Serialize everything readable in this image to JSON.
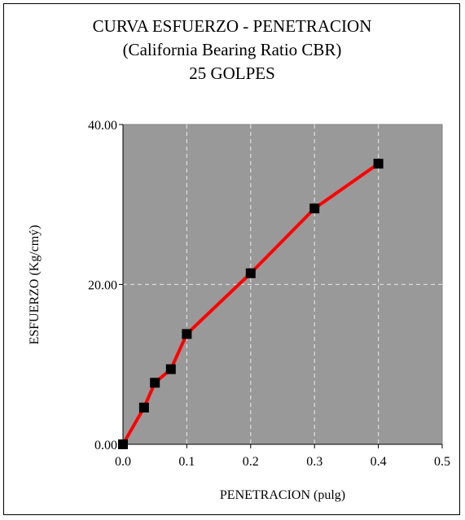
{
  "chart_data": {
    "type": "line",
    "title": "CURVA ESFUERZO - PENETRACION",
    "subtitle": "(California Bearing Ratio CBR)",
    "subtitle2": "25 GOLPES",
    "xlabel": "PENETRACION (pulg)",
    "ylabel": "ESFUERZO (Kg/cmý)",
    "xlim": [
      0,
      0.5
    ],
    "ylim": [
      0,
      40
    ],
    "x_ticks": [
      "0.0",
      "0.1",
      "0.2",
      "0.3",
      "0.4",
      "0.5"
    ],
    "y_ticks": [
      "0.00",
      "20.00",
      "40.00"
    ],
    "x_tick_values": [
      0,
      0.1,
      0.2,
      0.3,
      0.4,
      0.5
    ],
    "y_tick_values": [
      0,
      20,
      40
    ],
    "grid": true,
    "series": [
      {
        "x": [
          0.0,
          0.033,
          0.05,
          0.075,
          0.1,
          0.2,
          0.3,
          0.4
        ],
        "y": [
          0.0,
          4.6,
          7.7,
          9.4,
          13.8,
          21.4,
          29.5,
          35.1
        ]
      }
    ],
    "colors": {
      "plot_background": "#999999",
      "line": "#ff0000",
      "marker": "#000000",
      "grid": "#d9d9d9"
    }
  }
}
